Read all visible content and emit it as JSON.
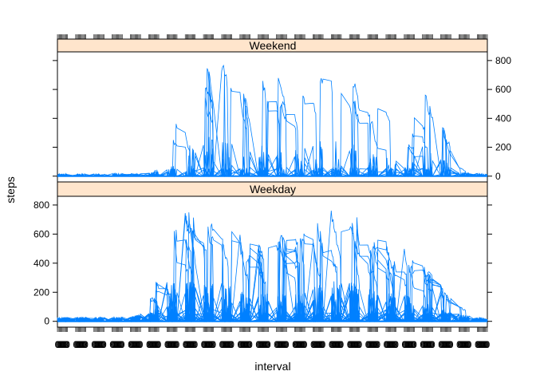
{
  "chart_data": {
    "type": "line",
    "xlabel": "interval",
    "ylabel": "steps",
    "x_tick_label": "0",
    "x_range": [
      0,
      2355
    ],
    "ylim": [
      -40,
      860
    ],
    "y_ticks": [
      0,
      200,
      400,
      600,
      800
    ],
    "series_color": "#0080ff",
    "strip_color": "#ffe5cc",
    "panels": [
      {
        "name": "Weekend",
        "y_tick_side": "right",
        "n_lines": 16,
        "activity_envelope": [
          {
            "interval": 0,
            "max_steps": 35
          },
          {
            "interval": 500,
            "max_steps": 40
          },
          {
            "interval": 530,
            "max_steps": 90
          },
          {
            "interval": 600,
            "max_steps": 100
          },
          {
            "interval": 700,
            "max_steps": 710
          },
          {
            "interval": 800,
            "max_steps": 760
          },
          {
            "interval": 830,
            "max_steps": 780
          },
          {
            "interval": 900,
            "max_steps": 790
          },
          {
            "interval": 1000,
            "max_steps": 600
          },
          {
            "interval": 1100,
            "max_steps": 680
          },
          {
            "interval": 1200,
            "max_steps": 700
          },
          {
            "interval": 1300,
            "max_steps": 580
          },
          {
            "interval": 1400,
            "max_steps": 700
          },
          {
            "interval": 1500,
            "max_steps": 770
          },
          {
            "interval": 1600,
            "max_steps": 770
          },
          {
            "interval": 1700,
            "max_steps": 440
          },
          {
            "interval": 1800,
            "max_steps": 510
          },
          {
            "interval": 1900,
            "max_steps": 190
          },
          {
            "interval": 2000,
            "max_steps": 600
          },
          {
            "interval": 2100,
            "max_steps": 380
          },
          {
            "interval": 2200,
            "max_steps": 60
          },
          {
            "interval": 2355,
            "max_steps": 30
          }
        ]
      },
      {
        "name": "Weekday",
        "y_tick_side": "left",
        "n_lines": 45,
        "activity_envelope": [
          {
            "interval": 0,
            "max_steps": 55
          },
          {
            "interval": 400,
            "max_steps": 60
          },
          {
            "interval": 500,
            "max_steps": 140
          },
          {
            "interval": 530,
            "max_steps": 200
          },
          {
            "interval": 600,
            "max_steps": 800
          },
          {
            "interval": 700,
            "max_steps": 790
          },
          {
            "interval": 800,
            "max_steps": 770
          },
          {
            "interval": 900,
            "max_steps": 760
          },
          {
            "interval": 1000,
            "max_steps": 610
          },
          {
            "interval": 1100,
            "max_steps": 520
          },
          {
            "interval": 1200,
            "max_steps": 600
          },
          {
            "interval": 1300,
            "max_steps": 560
          },
          {
            "interval": 1400,
            "max_steps": 690
          },
          {
            "interval": 1500,
            "max_steps": 790
          },
          {
            "interval": 1600,
            "max_steps": 790
          },
          {
            "interval": 1700,
            "max_steps": 640
          },
          {
            "interval": 1800,
            "max_steps": 560
          },
          {
            "interval": 1900,
            "max_steps": 530
          },
          {
            "interval": 2000,
            "max_steps": 390
          },
          {
            "interval": 2100,
            "max_steps": 250
          },
          {
            "interval": 2200,
            "max_steps": 100
          },
          {
            "interval": 2355,
            "max_steps": 30
          }
        ]
      }
    ]
  }
}
